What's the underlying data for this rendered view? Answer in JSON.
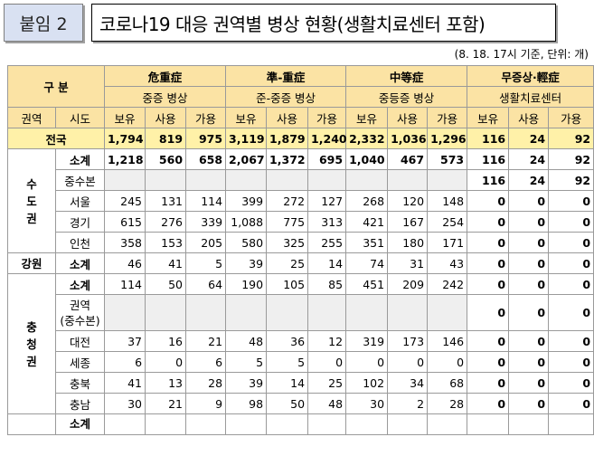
{
  "badge": "붙임 2",
  "title": "코로나19 대응 권역별 병상 현황(생활치료센터 포함)",
  "note": "(8. 18. 17시 기준, 단위: 개)",
  "header": {
    "gubun": "구 분",
    "groups": [
      {
        "name": "危重症",
        "sub": "중증 병상"
      },
      {
        "name": "準-重症",
        "sub": "준-중증 병상"
      },
      {
        "name": "中等症",
        "sub": "중등증 병상"
      },
      {
        "name": "무증상·輕症",
        "sub": "생활치료센터"
      }
    ],
    "col_region": "권역",
    "col_city": "시도",
    "cols": [
      "보유",
      "사용",
      "가용"
    ]
  },
  "national": {
    "label": "전국",
    "values": [
      "1,794",
      "819",
      "975",
      "3,119",
      "1,879",
      "1,240",
      "2,332",
      "1,036",
      "1,296",
      "116",
      "24",
      "92"
    ]
  },
  "regions": [
    {
      "name": "수도권",
      "rows": [
        {
          "label": "소계",
          "values": [
            "1,218",
            "560",
            "658",
            "2,067",
            "1,372",
            "695",
            "1,040",
            "467",
            "573",
            "116",
            "24",
            "92"
          ]
        },
        {
          "label": "중수본",
          "values": [
            "",
            "",
            "",
            "",
            "",
            "",
            "",
            "",
            "",
            "116",
            "24",
            "92"
          ]
        },
        {
          "label": "서울",
          "values": [
            "245",
            "131",
            "114",
            "399",
            "272",
            "127",
            "268",
            "120",
            "148",
            "0",
            "0",
            "0"
          ]
        },
        {
          "label": "경기",
          "values": [
            "615",
            "276",
            "339",
            "1,088",
            "775",
            "313",
            "421",
            "167",
            "254",
            "0",
            "0",
            "0"
          ]
        },
        {
          "label": "인천",
          "values": [
            "358",
            "153",
            "205",
            "580",
            "325",
            "255",
            "351",
            "180",
            "171",
            "0",
            "0",
            "0"
          ]
        }
      ]
    },
    {
      "name": "강원",
      "rows": [
        {
          "label": "소계",
          "values": [
            "46",
            "41",
            "5",
            "39",
            "25",
            "14",
            "74",
            "31",
            "43",
            "0",
            "0",
            "0"
          ]
        }
      ]
    },
    {
      "name": "충청권",
      "rows": [
        {
          "label": "소계",
          "values": [
            "114",
            "50",
            "64",
            "190",
            "105",
            "85",
            "451",
            "209",
            "242",
            "0",
            "0",
            "0"
          ]
        },
        {
          "label": "권역\n(중수본)",
          "values": [
            "",
            "",
            "",
            "",
            "",
            "",
            "",
            "",
            "",
            "0",
            "0",
            "0"
          ]
        },
        {
          "label": "대전",
          "values": [
            "37",
            "16",
            "21",
            "48",
            "36",
            "12",
            "319",
            "173",
            "146",
            "0",
            "0",
            "0"
          ]
        },
        {
          "label": "세종",
          "values": [
            "6",
            "0",
            "6",
            "5",
            "5",
            "0",
            "0",
            "0",
            "0",
            "0",
            "0",
            "0"
          ]
        },
        {
          "label": "충북",
          "values": [
            "41",
            "13",
            "28",
            "39",
            "14",
            "25",
            "102",
            "34",
            "68",
            "0",
            "0",
            "0"
          ]
        },
        {
          "label": "충남",
          "values": [
            "30",
            "21",
            "9",
            "98",
            "50",
            "48",
            "30",
            "2",
            "28",
            "0",
            "0",
            "0"
          ]
        }
      ]
    }
  ],
  "cut_row": {
    "label": "소계"
  }
}
